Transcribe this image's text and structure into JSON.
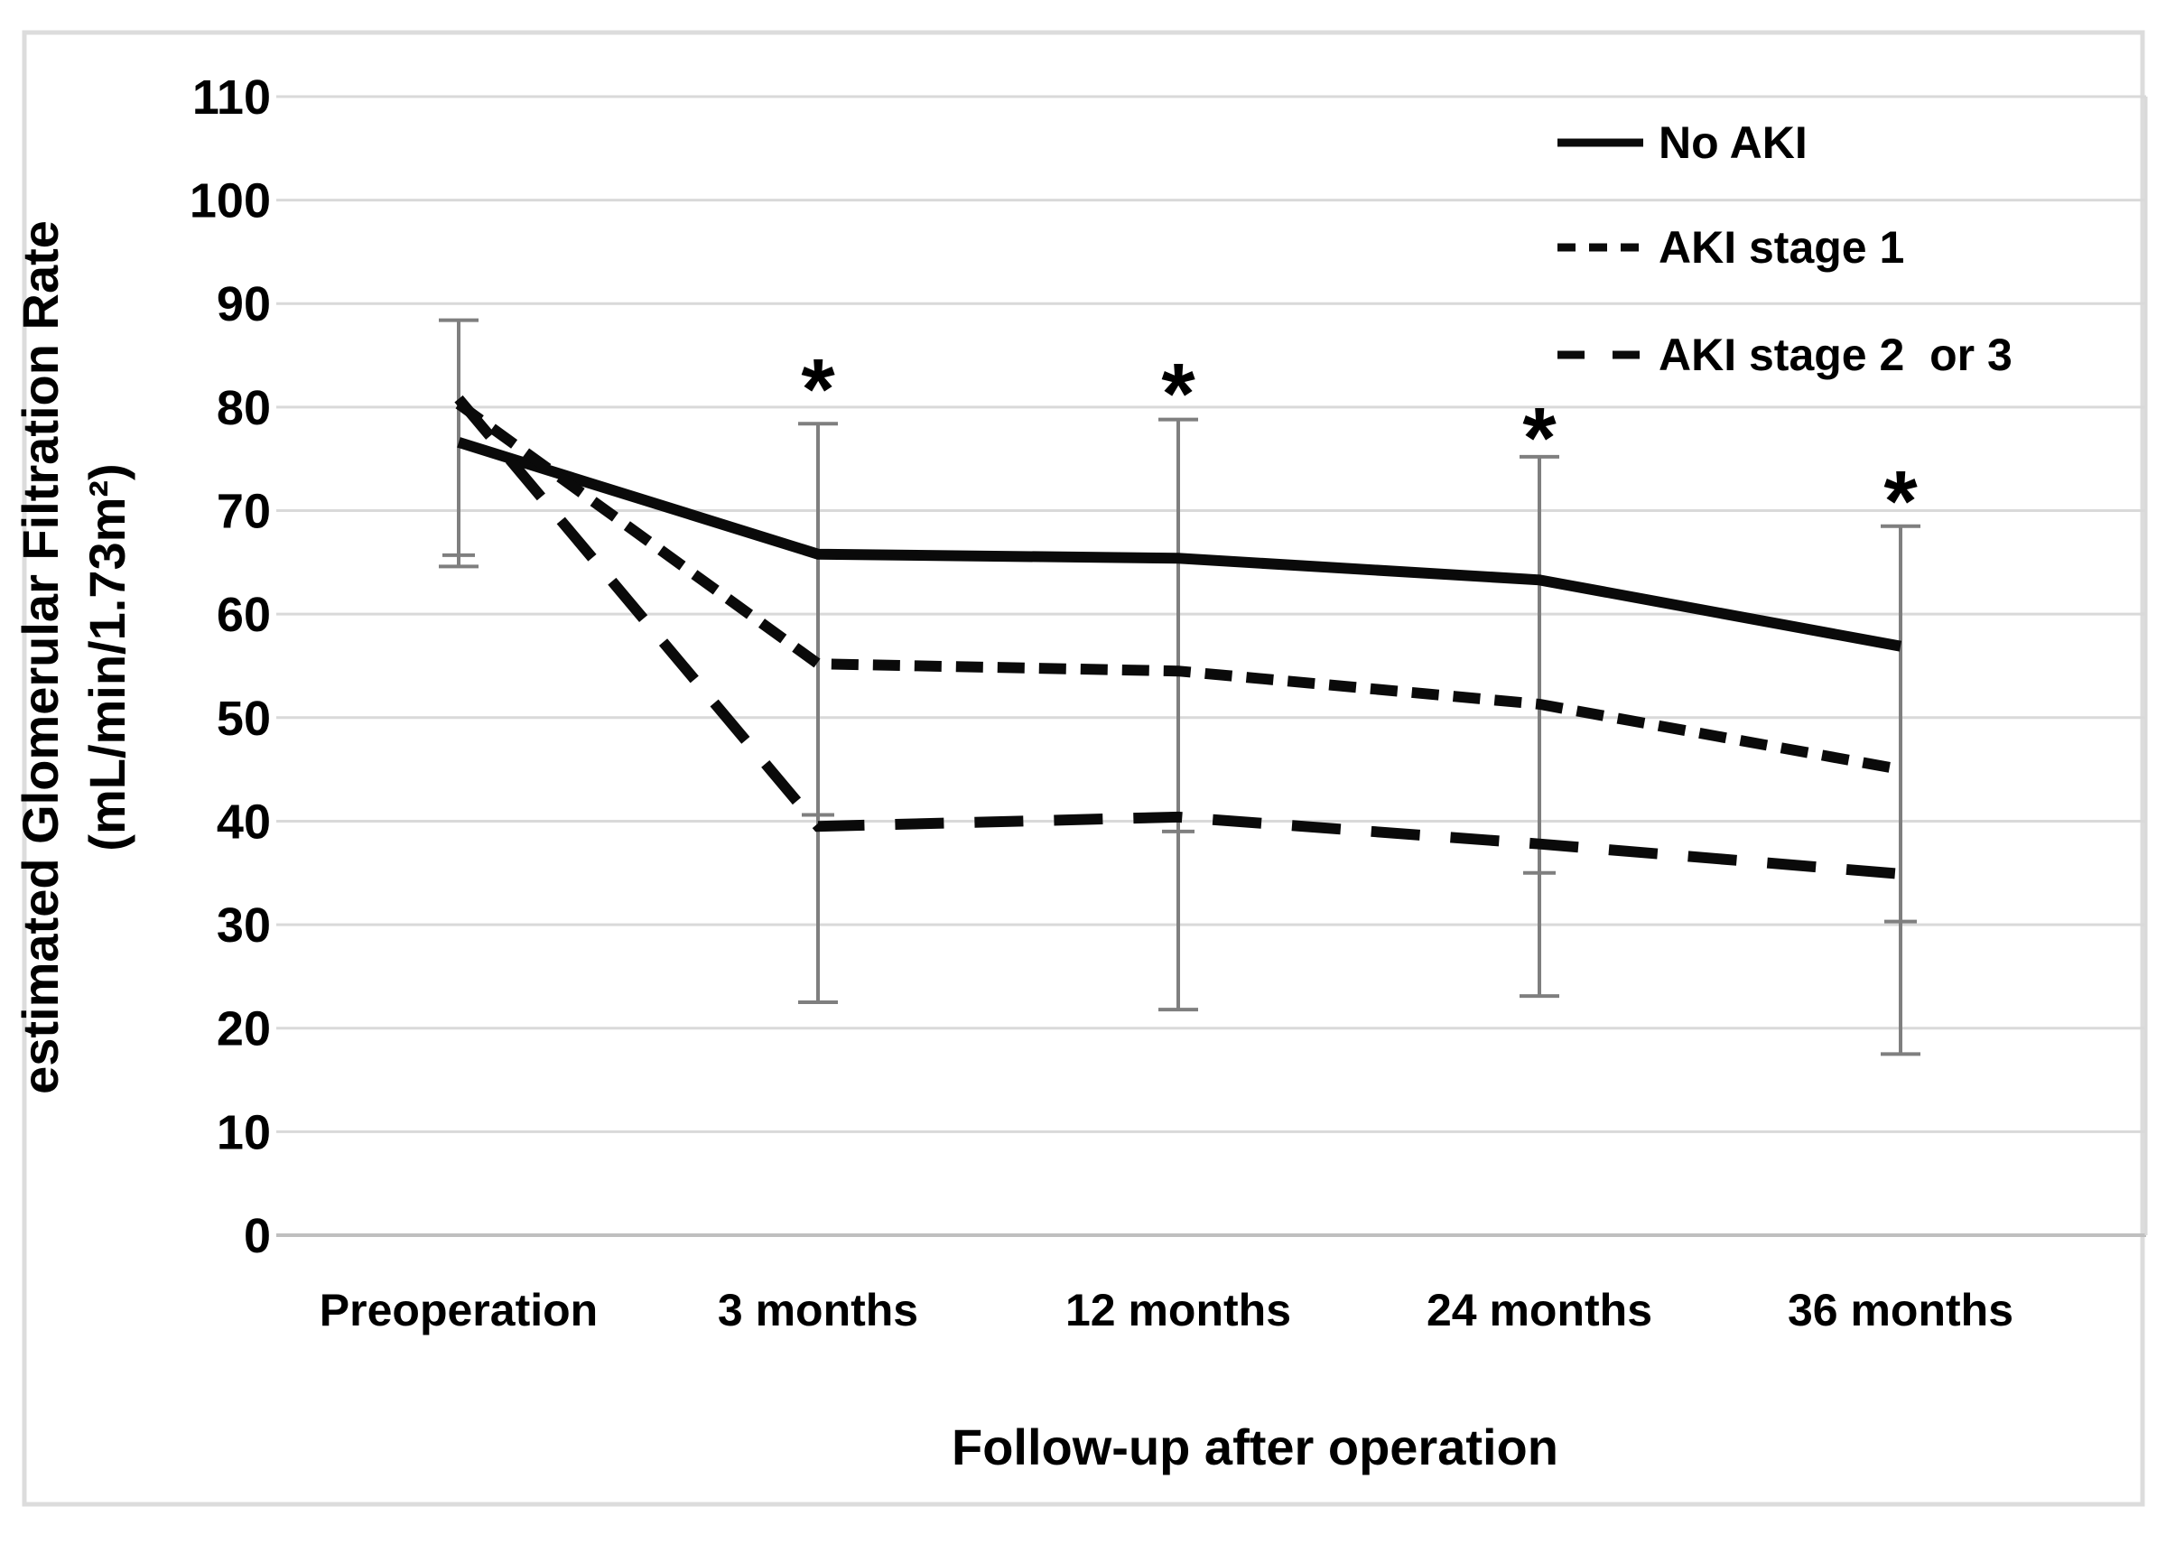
{
  "chart_data": {
    "type": "line",
    "title": "",
    "xlabel": "Follow-up after operation",
    "ylabel_line1": "estimated Glomerular Filtration Rate",
    "ylabel_line2": "(mL/min/1.73m²)",
    "categories": [
      "Preoperation",
      "3 months",
      "12 months",
      "24 months",
      "36 months"
    ],
    "y_ticks": [
      0,
      10,
      20,
      30,
      40,
      50,
      60,
      70,
      80,
      90,
      100,
      110
    ],
    "ylim": [
      0,
      110
    ],
    "grid": true,
    "legend_position": "top-right-inside",
    "series": [
      {
        "name": "No AKI",
        "style": "solid",
        "values": [
          76.6,
          65.8,
          65.4,
          63.3,
          56.9
        ]
      },
      {
        "name": "AKI stage 1",
        "style": "short-dash",
        "values": [
          80.3,
          55.2,
          54.5,
          51.3,
          45.0
        ]
      },
      {
        "name": "AKI stage 2  or 3",
        "style": "long-dash",
        "values": [
          80.8,
          39.5,
          40.4,
          37.8,
          34.9
        ]
      }
    ],
    "error_bars": [
      {
        "category": "Preoperation",
        "top": 88.4,
        "bottom": 64.6,
        "mid_caps": [
          65.7
        ]
      },
      {
        "category": "3 months",
        "top": 78.4,
        "bottom": 22.5,
        "mid_caps": [
          40.6
        ]
      },
      {
        "category": "12 months",
        "top": 78.8,
        "bottom": 21.8,
        "mid_caps": [
          39.0
        ]
      },
      {
        "category": "24 months",
        "top": 75.2,
        "bottom": 23.1,
        "mid_caps": [
          35.0
        ]
      },
      {
        "category": "36 months",
        "top": 68.5,
        "bottom": 17.5,
        "mid_caps": [
          30.3
        ]
      }
    ],
    "significance_markers": [
      {
        "category": "3 months",
        "symbol": "*",
        "y": 83.2
      },
      {
        "category": "12 months",
        "symbol": "*",
        "y": 82.8
      },
      {
        "category": "24 months",
        "symbol": "*",
        "y": 78.5
      },
      {
        "category": "36 months",
        "symbol": "*",
        "y": 72.4
      }
    ],
    "colors": {
      "series_line": "#0a0a0a",
      "error_bar": "#7f7f7f",
      "gridline": "#d9d9d9",
      "axis_line": "#bfbfbf",
      "plot_border": "#d9d9d9",
      "figure_border": "#dcdcdc",
      "text": "#000000",
      "background": "#ffffff"
    }
  }
}
